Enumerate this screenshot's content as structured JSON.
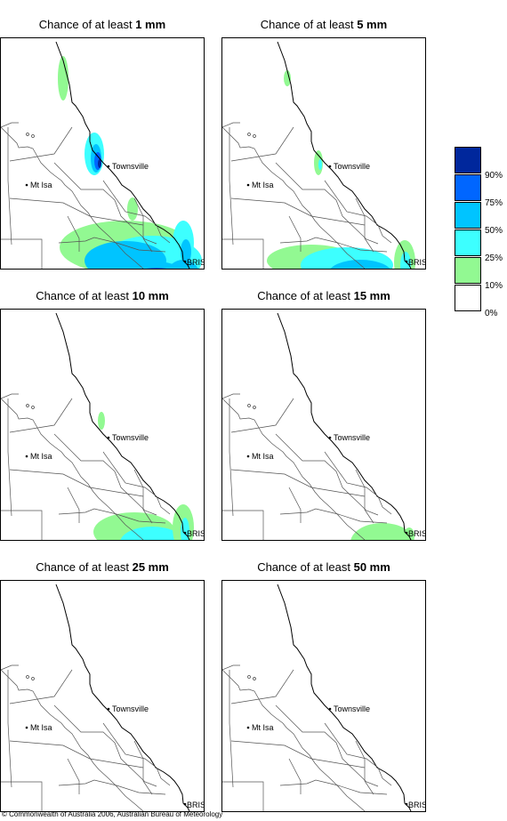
{
  "panels": [
    {
      "prefix": "Chance of at least",
      "amount": "1 mm",
      "level": 0
    },
    {
      "prefix": "Chance of at least",
      "amount": "5 mm",
      "level": 1
    },
    {
      "prefix": "Chance of at least",
      "amount": "10 mm",
      "level": 2
    },
    {
      "prefix": "Chance of at least",
      "amount": "15 mm",
      "level": 3
    },
    {
      "prefix": "Chance of at least",
      "amount": "25 mm",
      "level": 4
    },
    {
      "prefix": "Chance of at least",
      "amount": "50 mm",
      "level": 5
    }
  ],
  "places": {
    "townsville": "Townsville",
    "mt_isa": "Mt Isa",
    "bris": "BRIS"
  },
  "legend": {
    "boxes": [
      {
        "color": "#00279c"
      },
      {
        "color": "#0066ff"
      },
      {
        "color": "#00c4ff"
      },
      {
        "color": "#3dffff"
      },
      {
        "color": "#92f992"
      },
      {
        "color": "#ffffff"
      }
    ],
    "labels": [
      "90%",
      "75%",
      "50%",
      "25%",
      "10%",
      "0%"
    ]
  },
  "copyright": "© Commonwealth of Australia 2006, Australian Bureau of Meteorology"
}
